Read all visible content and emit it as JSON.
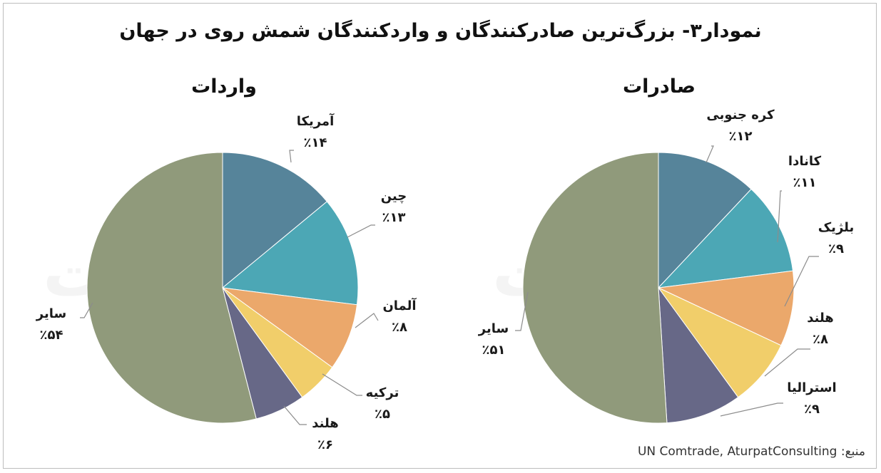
{
  "title": "نمودار۳- بزرگ‌ترین صادرکنندگان و واردکنندگان شمش روی در جهان",
  "source": "منبع: UN Comtrade, AturpatConsulting",
  "watermark": "آتورپات",
  "colors": {
    "background": "#ffffff",
    "leader": "#8c8c8c",
    "slice_edge": "#ffffff"
  },
  "chart_data": [
    {
      "type": "pie",
      "title": "صادرات",
      "start": "12 o'clock",
      "direction": "clockwise",
      "slices": [
        {
          "name": "کره جنوبی",
          "value": 12,
          "label": "٪۱۲",
          "color": "#56849a"
        },
        {
          "name": "کانادا",
          "value": 11,
          "label": "٪۱۱",
          "color": "#4ca7b5"
        },
        {
          "name": "بلژیک",
          "value": 9,
          "label": "٪۹",
          "color": "#eba86b"
        },
        {
          "name": "هلند",
          "value": 8,
          "label": "٪۸",
          "color": "#f1ce6a"
        },
        {
          "name": "استرالیا",
          "value": 9,
          "label": "٪۹",
          "color": "#676887"
        },
        {
          "name": "سایر",
          "value": 51,
          "label": "٪۵۱",
          "color": "#909a7b"
        }
      ]
    },
    {
      "type": "pie",
      "title": "واردات",
      "start": "12 o'clock",
      "direction": "clockwise",
      "slices": [
        {
          "name": "آمریکا",
          "value": 14,
          "label": "٪۱۴",
          "color": "#56849a"
        },
        {
          "name": "چین",
          "value": 13,
          "label": "٪۱۳",
          "color": "#4ca7b5"
        },
        {
          "name": "آلمان",
          "value": 8,
          "label": "٪۸",
          "color": "#eba86b"
        },
        {
          "name": "ترکیه",
          "value": 5,
          "label": "٪۵",
          "color": "#f1ce6a"
        },
        {
          "name": "هلند",
          "value": 6,
          "label": "٪۶",
          "color": "#676887"
        },
        {
          "name": "سایر",
          "value": 54,
          "label": "٪۵۴",
          "color": "#909a7b"
        }
      ]
    }
  ]
}
